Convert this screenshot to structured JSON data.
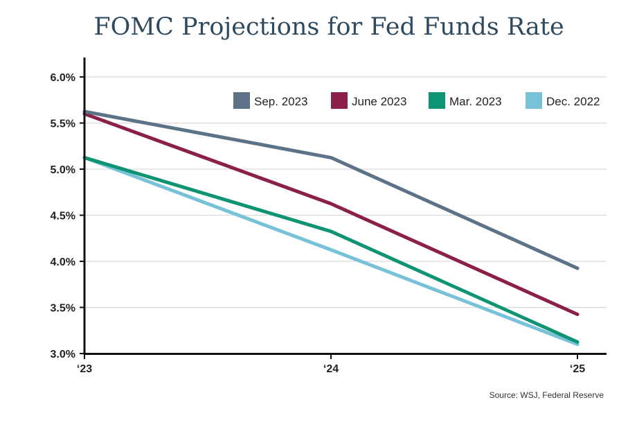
{
  "chart_data": {
    "type": "line",
    "title": "FOMC Projections for Fed Funds Rate",
    "source": "Source: WSJ, Federal Reserve",
    "x": [
      "‘23",
      "‘24",
      "‘25"
    ],
    "ylim": [
      3.0,
      6.0
    ],
    "yticks": [
      3.0,
      3.5,
      4.0,
      4.5,
      5.0,
      5.5,
      6.0
    ],
    "ytick_labels": [
      "3.0%",
      "3.5%",
      "4.0%",
      "4.5%",
      "5.0%",
      "5.5%",
      "6.0%"
    ],
    "grid": true,
    "legend_position": "top-right",
    "series": [
      {
        "name": "Sep. 2023",
        "color": "#5c7286",
        "values": [
          5.625,
          5.125,
          3.925
        ]
      },
      {
        "name": "June 2023",
        "color": "#8a2049",
        "values": [
          5.6,
          4.625,
          3.425
        ]
      },
      {
        "name": "Mar. 2023",
        "color": "#0f9473",
        "values": [
          5.125,
          4.325,
          3.125
        ]
      },
      {
        "name": "Dec. 2022",
        "color": "#77c2d8",
        "values": [
          5.125,
          4.125,
          3.1
        ]
      }
    ]
  }
}
